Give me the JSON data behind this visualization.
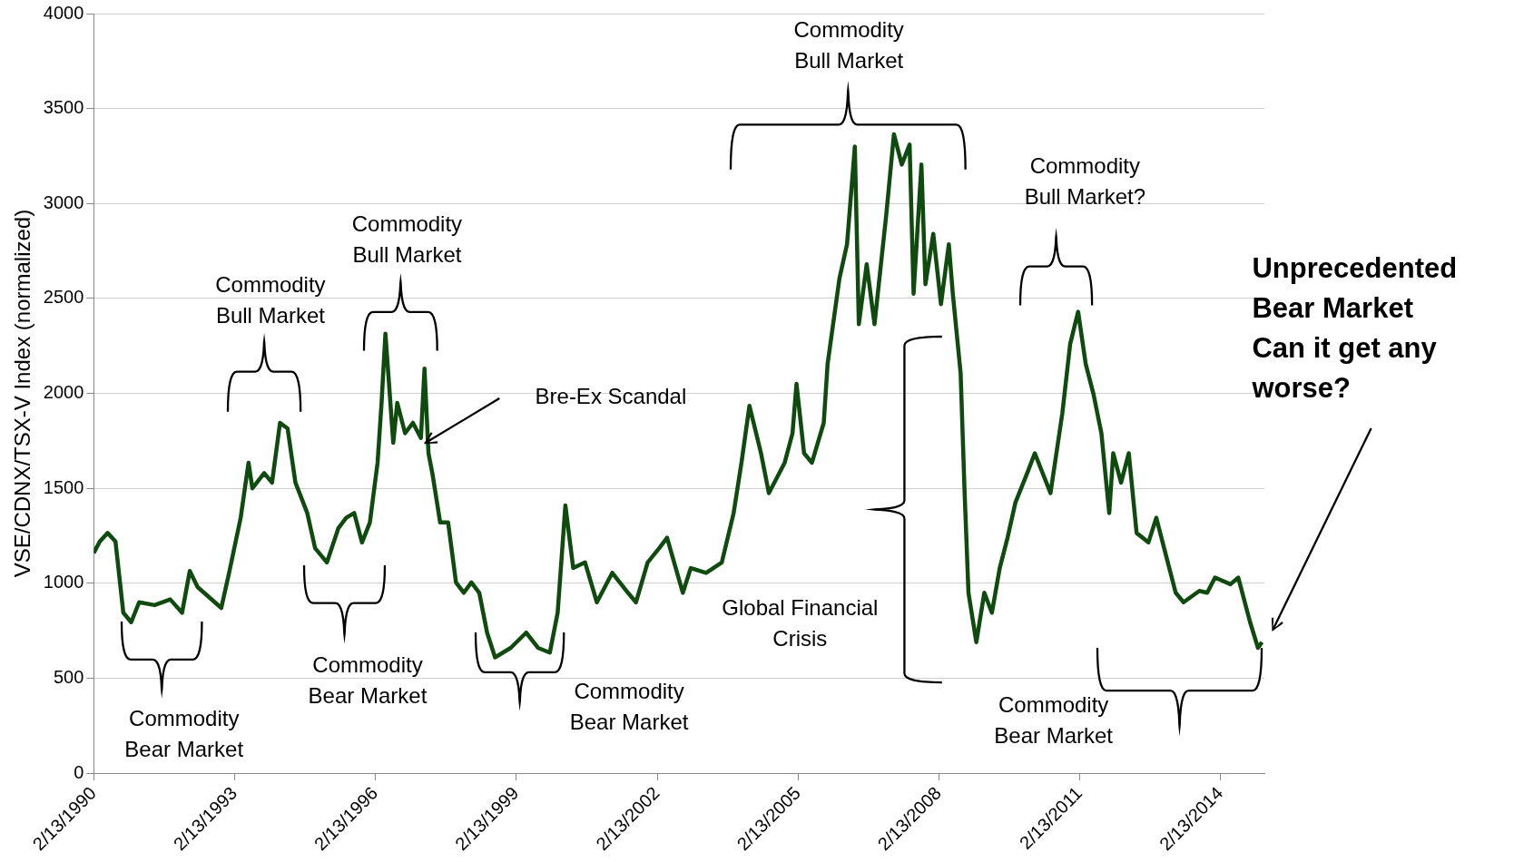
{
  "chart_data": {
    "type": "line",
    "ylabel": "VSE/CDNX/TSX-V Index (normalized)",
    "x": [
      "1990-02-13",
      "1990-04",
      "1990-06",
      "1990-08",
      "1990-10",
      "1990-12",
      "1991-02",
      "1991-06",
      "1991-10",
      "1992-01",
      "1992-03",
      "1992-05",
      "1992-08",
      "1992-11",
      "1993-01",
      "1993-04",
      "1993-06",
      "1993-07",
      "1993-10",
      "1993-12",
      "1994-02",
      "1994-04",
      "1994-06",
      "1994-09",
      "1994-11",
      "1995-02",
      "1995-05",
      "1995-07",
      "1995-09",
      "1995-11",
      "1996-01",
      "1996-03",
      "1996-04",
      "1996-05",
      "1996-07",
      "1996-08",
      "1996-10",
      "1996-12",
      "1997-02",
      "1997-03",
      "1997-04",
      "1997-05",
      "1997-07",
      "1997-09",
      "1997-11",
      "1998-01",
      "1998-03",
      "1998-05",
      "1998-07",
      "1998-09",
      "1999-01",
      "1999-05",
      "1999-08",
      "1999-11",
      "2000-01",
      "2000-03",
      "2000-05",
      "2000-08",
      "2000-11",
      "2001-03",
      "2001-07",
      "2001-09",
      "2001-12",
      "2002-03",
      "2002-05",
      "2002-09",
      "2002-11",
      "2003-03",
      "2003-07",
      "2003-10",
      "2003-12",
      "2004-02",
      "2004-05",
      "2004-07",
      "2004-11",
      "2005-01",
      "2005-02",
      "2005-04",
      "2005-06",
      "2005-09",
      "2005-10",
      "2006-01",
      "2006-03",
      "2006-05",
      "2006-06",
      "2006-08",
      "2006-10",
      "2007-01",
      "2007-03",
      "2007-05",
      "2007-07",
      "2007-08",
      "2007-10",
      "2007-11",
      "2008-01",
      "2008-03",
      "2008-05",
      "2008-06",
      "2008-08",
      "2008-09",
      "2008-10",
      "2008-12",
      "2009-02",
      "2009-04",
      "2009-06",
      "2009-08",
      "2009-10",
      "2010-01",
      "2010-03",
      "2010-05",
      "2010-07",
      "2010-10",
      "2010-12",
      "2011-02",
      "2011-04",
      "2011-06",
      "2011-08",
      "2011-10",
      "2011-11",
      "2012-01",
      "2012-03",
      "2012-05",
      "2012-08",
      "2012-10",
      "2012-12",
      "2013-03",
      "2013-05",
      "2013-09",
      "2013-11",
      "2014-01",
      "2014-05",
      "2014-07",
      "2014-10",
      "2014-12",
      "2015-01"
    ],
    "series": [
      {
        "color": "#0f4a0f",
        "values": [
          1160,
          1220,
          1265,
          1220,
          845,
          795,
          900,
          885,
          915,
          845,
          1065,
          980,
          925,
          870,
          1055,
          1345,
          1635,
          1500,
          1580,
          1530,
          1845,
          1815,
          1530,
          1370,
          1185,
          1110,
          1290,
          1345,
          1370,
          1215,
          1320,
          1635,
          1950,
          2315,
          1740,
          1950,
          1790,
          1845,
          1765,
          2130,
          1685,
          1580,
          1320,
          1320,
          1005,
          950,
          1005,
          950,
          740,
          610,
          660,
          740,
          660,
          635,
          845,
          1410,
          1080,
          1110,
          900,
          1055,
          950,
          900,
          1110,
          1185,
          1240,
          950,
          1080,
          1055,
          1110,
          1370,
          1635,
          1935,
          1685,
          1475,
          1635,
          1790,
          2050,
          1685,
          1635,
          1845,
          2155,
          2605,
          2785,
          3300,
          2365,
          2680,
          2365,
          2945,
          3365,
          3205,
          3310,
          2525,
          3205,
          2575,
          2840,
          2470,
          2785,
          2525,
          2105,
          1475,
          950,
          690,
          950,
          845,
          1080,
          1240,
          1425,
          1580,
          1685,
          1580,
          1475,
          1895,
          2260,
          2430,
          2155,
          1995,
          1790,
          1370,
          1685,
          1530,
          1685,
          1265,
          1215,
          1345,
          1185,
          950,
          900,
          960,
          950,
          1030,
          995,
          1030,
          795,
          660,
          690
        ]
      }
    ],
    "xlim": [
      "1990-02-13",
      "2015-01-20"
    ],
    "xticks": [
      {
        "value": "1990-02-13",
        "label": "2/13/1990"
      },
      {
        "value": "1993-02-13",
        "label": "2/13/1993"
      },
      {
        "value": "1996-02-13",
        "label": "2/13/1996"
      },
      {
        "value": "1999-02-13",
        "label": "2/13/1999"
      },
      {
        "value": "2002-02-13",
        "label": "2/13/2002"
      },
      {
        "value": "2005-02-13",
        "label": "2/13/2005"
      },
      {
        "value": "2008-02-13",
        "label": "2/13/2008"
      },
      {
        "value": "2011-02-13",
        "label": "2/13/2011"
      },
      {
        "value": "2014-02-13",
        "label": "2/13/2014"
      }
    ],
    "ylim": [
      0,
      4000
    ],
    "yticks": [
      0,
      500,
      1000,
      1500,
      2000,
      2500,
      3000,
      3500,
      4000
    ],
    "grid": "y",
    "legend": false,
    "marker": "none",
    "line_style": "solid",
    "annotations": [
      "Commodity\nBear Market",
      "Commodity\nBull Market",
      "Commodity\nBull Market",
      "Bre-Ex Scandal",
      "Commodity\nBear Market",
      "Commodity\nBear Market",
      "Global Financial\nCrisis",
      "Commodity\nBull Market",
      "Commodity\nBull Market?",
      "Commodity\nBear Market",
      "Unprecedented\nBear Market\nCan it get any\nworse?"
    ]
  }
}
